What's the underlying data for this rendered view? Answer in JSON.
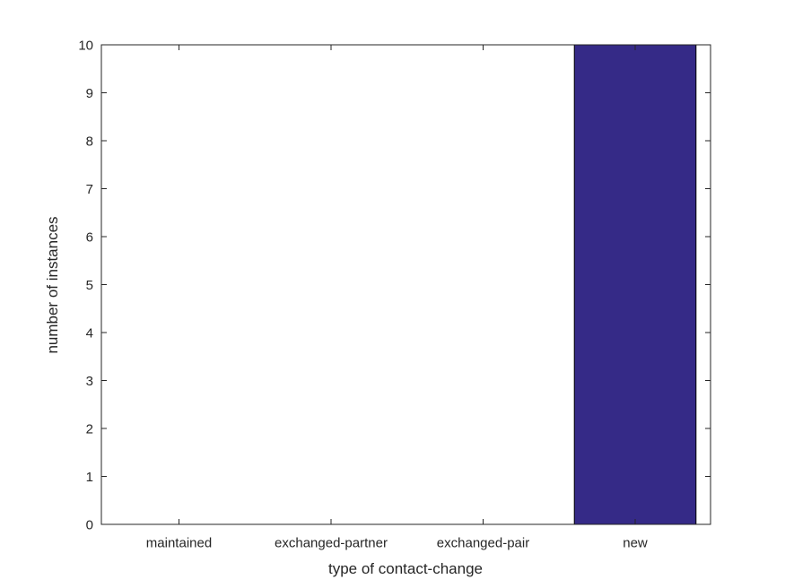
{
  "figure": {
    "background": "#FFFFFF"
  },
  "chart_data": {
    "type": "bar",
    "title": "",
    "xlabel": "type of contact-change",
    "ylabel": "number of instances",
    "categories": [
      "maintained",
      "exchanged-partner",
      "exchanged-pair",
      "new"
    ],
    "values": [
      0,
      0,
      0,
      10
    ],
    "ylim": [
      0,
      10
    ],
    "yticks": [
      0,
      1,
      2,
      3,
      4,
      5,
      6,
      7,
      8,
      9,
      10
    ],
    "grid": false,
    "legend": "none",
    "box": true,
    "tick_direction": "in",
    "bar_width_fraction": 0.8,
    "bar_color": "#352A87",
    "bar_edge_color": "#000000",
    "axis_color": "#262626",
    "text_color": "#262626"
  }
}
